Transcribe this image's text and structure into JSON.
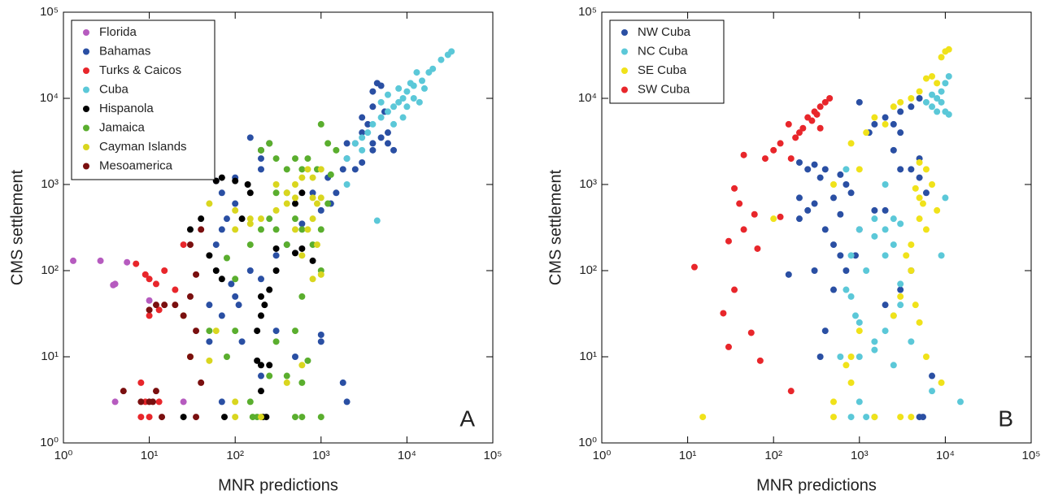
{
  "chart_data": [
    {
      "type": "scatter",
      "xlabel": "MNR predictions",
      "ylabel": "CMS settlement",
      "annotation": "A",
      "xscale": "log",
      "yscale": "log",
      "legend": "upper left",
      "xlim": [
        1,
        100000
      ],
      "ylim": [
        1,
        100000
      ],
      "xticks": [
        {
          "value": 1,
          "label": "10⁰"
        },
        {
          "value": 10,
          "label": "10¹"
        },
        {
          "value": 100,
          "label": "10²"
        },
        {
          "value": 1000,
          "label": "10³"
        },
        {
          "value": 10000,
          "label": "10⁴"
        },
        {
          "value": 100000,
          "label": "10⁵"
        }
      ],
      "yticks": [
        {
          "value": 1,
          "label": "10⁰"
        },
        {
          "value": 10,
          "label": "10¹"
        },
        {
          "value": 100,
          "label": "10²"
        },
        {
          "value": 1000,
          "label": "10³"
        },
        {
          "value": 10000,
          "label": "10⁴"
        },
        {
          "value": 100000,
          "label": "10⁵"
        }
      ],
      "series": [
        {
          "name": "Florida",
          "color": "#b65bbf",
          "x": [
            1.3,
            2.7,
            5.5,
            4,
            3.8,
            4,
            10,
            25
          ],
          "values": [
            130,
            130,
            125,
            70,
            68,
            3,
            45,
            3
          ]
        },
        {
          "name": "Bahamas",
          "color": "#2a4fa3",
          "x": [
            4000,
            4500,
            5000,
            5500,
            3500,
            3000,
            4000,
            5000,
            6000,
            7000,
            2000,
            2500,
            3000,
            4000,
            6000,
            2500,
            1800,
            1200,
            1500,
            1300,
            3000,
            4000,
            2000,
            1000,
            800,
            150,
            100,
            70,
            60,
            200,
            200,
            100,
            80,
            70,
            60,
            50,
            70,
            90,
            100,
            110,
            120,
            150,
            200,
            300,
            400,
            1000,
            1000,
            1800,
            2000,
            70,
            50,
            200,
            300,
            500,
            600
          ],
          "values": [
            12000,
            15000,
            14000,
            7000,
            5000,
            4000,
            3000,
            3500,
            3000,
            2500,
            2000,
            1500,
            1800,
            2500,
            4000,
            3000,
            1500,
            1200,
            800,
            600,
            6000,
            8000,
            3000,
            500,
            800,
            3500,
            1200,
            800,
            1100,
            2000,
            1500,
            600,
            400,
            300,
            200,
            40,
            30,
            70,
            50,
            40,
            15,
            100,
            80,
            150,
            200,
            18,
            15,
            5,
            3,
            3,
            15,
            6,
            20,
            10,
            350
          ]
        },
        {
          "name": "Turks & Caicos",
          "color": "#e8262b",
          "x": [
            7,
            9,
            10,
            12,
            15,
            20,
            10,
            13,
            8,
            8,
            10,
            13,
            9,
            25
          ],
          "values": [
            120,
            90,
            80,
            70,
            100,
            60,
            30,
            35,
            5,
            2,
            2,
            3,
            3,
            200
          ]
        },
        {
          "name": "Cuba",
          "color": "#5bc8d8",
          "x": [
            2000,
            2500,
            3000,
            3500,
            4000,
            5000,
            6000,
            7000,
            8000,
            9000,
            10000,
            12000,
            15000,
            18000,
            20000,
            25000,
            30000,
            33000,
            5000,
            6000,
            8000,
            10000,
            12000,
            14000,
            9000,
            7000,
            11000,
            13000,
            4500,
            16000,
            3000,
            2000
          ],
          "values": [
            2000,
            3000,
            3500,
            4000,
            5000,
            6000,
            7000,
            8000,
            9000,
            10000,
            12000,
            14000,
            16000,
            20000,
            22000,
            28000,
            32000,
            35000,
            9000,
            11000,
            13000,
            8000,
            10000,
            9000,
            6000,
            5000,
            15000,
            20000,
            380,
            13000,
            2500,
            1000
          ]
        },
        {
          "name": "Hispanola",
          "color": "#000000",
          "x": [
            60,
            70,
            100,
            140,
            200,
            250,
            40,
            30,
            50,
            150,
            120,
            200,
            200,
            250,
            300,
            300,
            220,
            180,
            200,
            180,
            250,
            200,
            210,
            230,
            25,
            75,
            500,
            600,
            800,
            500,
            600,
            60,
            70
          ],
          "values": [
            1100,
            1200,
            1100,
            1000,
            2500,
            3000,
            400,
            300,
            150,
            800,
            400,
            30,
            50,
            60,
            180,
            100,
            40,
            20,
            8,
            9,
            8,
            4,
            2,
            2,
            2,
            2,
            160,
            180,
            130,
            600,
            800,
            100,
            80
          ]
        },
        {
          "name": "Jamaica",
          "color": "#5aae2e",
          "x": [
            250,
            300,
            200,
            400,
            500,
            600,
            700,
            1000,
            1200,
            1500,
            900,
            400,
            300,
            250,
            200,
            300,
            150,
            400,
            500,
            600,
            800,
            1000,
            1000,
            600,
            500,
            300,
            400,
            600,
            250,
            100,
            80,
            150,
            160,
            180,
            500,
            600,
            1000,
            100,
            80,
            1300,
            1200,
            700,
            50
          ],
          "values": [
            3000,
            2000,
            2500,
            1500,
            2000,
            1500,
            2000,
            5000,
            3000,
            2500,
            1500,
            800,
            800,
            400,
            300,
            300,
            200,
            200,
            400,
            300,
            200,
            300,
            100,
            50,
            20,
            15,
            6,
            5,
            6,
            20,
            10,
            3,
            2,
            2,
            2,
            2,
            2,
            80,
            140,
            1300,
            600,
            9,
            20
          ]
        },
        {
          "name": "Cayman Islands",
          "color": "#d9d61f",
          "x": [
            100,
            150,
            200,
            300,
            400,
            500,
            500,
            600,
            700,
            800,
            1000,
            300,
            400,
            800,
            900,
            1000,
            700,
            500,
            900,
            600,
            800,
            1000,
            50,
            100,
            150,
            25,
            30,
            60,
            100,
            100,
            200,
            400,
            600,
            50,
            800
          ],
          "values": [
            500,
            400,
            400,
            500,
            600,
            700,
            1000,
            1200,
            1500,
            1200,
            1500,
            1000,
            800,
            400,
            600,
            700,
            300,
            300,
            200,
            150,
            80,
            90,
            600,
            300,
            350,
            30,
            10,
            20,
            3,
            2,
            2,
            5,
            8,
            9,
            700
          ]
        },
        {
          "name": "Mesoamerica",
          "color": "#7a0f0f",
          "x": [
            40,
            30,
            35,
            30,
            25,
            35,
            20,
            15,
            12,
            10,
            5,
            8,
            10,
            11,
            12,
            14,
            30,
            35,
            40
          ],
          "values": [
            300,
            200,
            90,
            50,
            30,
            20,
            40,
            40,
            40,
            35,
            4,
            3,
            3,
            3,
            4,
            2,
            10,
            2,
            5
          ]
        }
      ]
    },
    {
      "type": "scatter",
      "xlabel": "MNR predictions",
      "ylabel": "CMS settlement",
      "annotation": "B",
      "xscale": "log",
      "yscale": "log",
      "legend": "upper left",
      "xlim": [
        1,
        100000
      ],
      "ylim": [
        1,
        100000
      ],
      "xticks": [
        {
          "value": 1,
          "label": "10⁰"
        },
        {
          "value": 10,
          "label": "10¹"
        },
        {
          "value": 100,
          "label": "10²"
        },
        {
          "value": 1000,
          "label": "10³"
        },
        {
          "value": 10000,
          "label": "10⁴"
        },
        {
          "value": 100000,
          "label": "10⁵"
        }
      ],
      "yticks": [
        {
          "value": 1,
          "label": "10⁰"
        },
        {
          "value": 10,
          "label": "10¹"
        },
        {
          "value": 100,
          "label": "10²"
        },
        {
          "value": 1000,
          "label": "10³"
        },
        {
          "value": 10000,
          "label": "10⁴"
        },
        {
          "value": 100000,
          "label": "10⁵"
        }
      ],
      "series": [
        {
          "name": "NW Cuba",
          "color": "#2a4fa3",
          "x": [
            1000,
            1500,
            2000,
            3000,
            4000,
            1300,
            2500,
            3000,
            5000,
            400,
            300,
            200,
            250,
            350,
            600,
            700,
            800,
            500,
            200,
            300,
            250,
            200,
            400,
            500,
            600,
            700,
            500,
            400,
            350,
            150,
            300,
            900,
            1000,
            2500,
            4000,
            5000,
            6000,
            5000,
            3000,
            4000,
            3000,
            2000,
            5000,
            5500,
            7000,
            1500,
            2000,
            600
          ],
          "values": [
            9000,
            5000,
            6000,
            7000,
            8000,
            4000,
            5000,
            4000,
            10000,
            1500,
            1700,
            1800,
            1500,
            1200,
            1300,
            1000,
            800,
            700,
            700,
            600,
            500,
            400,
            300,
            200,
            150,
            100,
            60,
            20,
            10,
            90,
            100,
            150,
            300,
            2500,
            1500,
            1200,
            800,
            2000,
            1500,
            100,
            60,
            40,
            2,
            2,
            6,
            500,
            500,
            450
          ]
        },
        {
          "name": "NC Cuba",
          "color": "#5bc8d8",
          "x": [
            7000,
            8000,
            9000,
            10000,
            11000,
            6000,
            7000,
            8000,
            9000,
            10000,
            11000,
            10000,
            2000,
            2500,
            3000,
            1500,
            1000,
            1500,
            2000,
            2500,
            1200,
            800,
            800,
            700,
            900,
            1500,
            1000,
            2000,
            2500,
            3000,
            600,
            1000,
            1500,
            2500,
            4000,
            1000,
            800,
            1200,
            1500,
            7000,
            15000,
            9000,
            3000,
            700,
            2000
          ],
          "values": [
            8000,
            10000,
            12000,
            15000,
            18000,
            9000,
            11000,
            7000,
            9000,
            7000,
            6500,
            700,
            300,
            400,
            350,
            250,
            300,
            400,
            150,
            200,
            100,
            150,
            50,
            60,
            30,
            15,
            25,
            20,
            30,
            40,
            10,
            10,
            12,
            8,
            15,
            3,
            2,
            2,
            2,
            4,
            3,
            150,
            70,
            1500,
            1000
          ]
        },
        {
          "name": "SE Cuba",
          "color": "#f0e21a",
          "x": [
            10000,
            11000,
            9000,
            8000,
            5000,
            4000,
            3000,
            2500,
            1500,
            1200,
            800,
            2000,
            6000,
            7000,
            5000,
            6000,
            7000,
            4500,
            5000,
            5500,
            5000,
            6000,
            4000,
            3500,
            4000,
            4500,
            5000,
            3000,
            2500,
            1000,
            800,
            700,
            800,
            500,
            500,
            1500,
            3000,
            4000,
            9000,
            15,
            100,
            500,
            1000,
            8000,
            6000
          ],
          "values": [
            35000,
            37000,
            30000,
            15000,
            12000,
            10000,
            9000,
            8000,
            6000,
            4000,
            3000,
            5000,
            17000,
            18000,
            1800,
            1500,
            1000,
            900,
            700,
            600,
            400,
            300,
            200,
            150,
            100,
            40,
            25,
            50,
            30,
            20,
            10,
            8,
            5,
            3,
            2,
            2,
            2,
            2,
            5,
            2,
            400,
            1000,
            1500,
            500,
            10
          ]
        },
        {
          "name": "SW Cuba",
          "color": "#e8262b",
          "x": [
            150,
            200,
            250,
            300,
            350,
            400,
            450,
            180,
            220,
            280,
            320,
            120,
            100,
            80,
            45,
            160,
            350,
            35,
            40,
            60,
            30,
            45,
            65,
            120,
            12,
            35,
            26,
            30,
            55,
            70,
            160
          ],
          "values": [
            5000,
            4000,
            6000,
            7000,
            8000,
            9000,
            10000,
            3500,
            4500,
            5500,
            6500,
            3000,
            2500,
            2000,
            2200,
            2000,
            4500,
            900,
            600,
            450,
            220,
            300,
            180,
            420,
            110,
            60,
            32,
            13,
            19,
            9,
            4
          ]
        }
      ]
    }
  ]
}
